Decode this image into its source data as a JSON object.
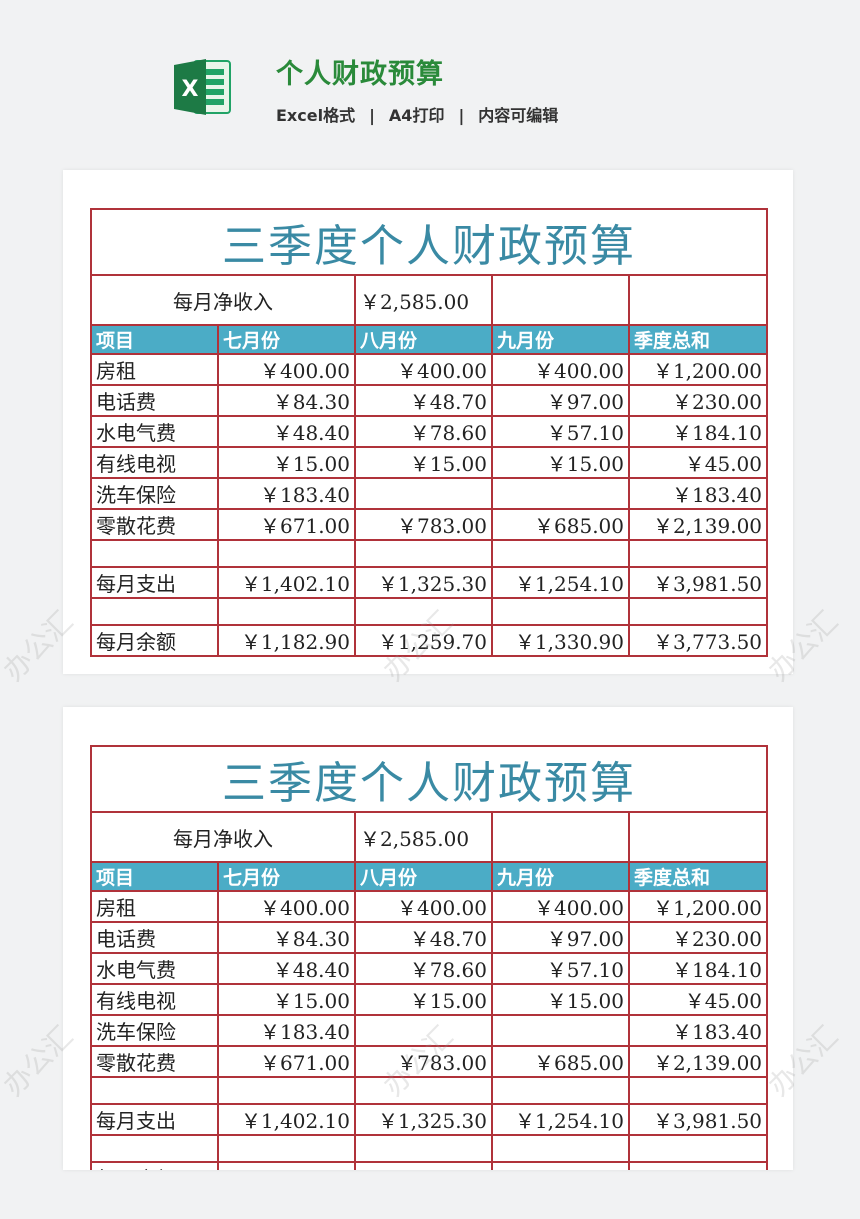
{
  "header": {
    "title": "个人财政预算",
    "format": "Excel格式",
    "print": "A4打印",
    "editable": "内容可编辑",
    "separator": "|"
  },
  "watermark": "办公汇",
  "sheet": {
    "title": "三季度个人财政预算",
    "income_label": "每月净收入",
    "income_value": "￥2,585.00",
    "columns": [
      "项目",
      "七月份",
      "八月份",
      "九月份",
      "季度总和"
    ],
    "rows": [
      [
        "房租",
        "￥400.00",
        "￥400.00",
        "￥400.00",
        "￥1,200.00"
      ],
      [
        "电话费",
        "￥84.30",
        "￥48.70",
        "￥97.00",
        "￥230.00"
      ],
      [
        "水电气费",
        "￥48.40",
        "￥78.60",
        "￥57.10",
        "￥184.10"
      ],
      [
        "有线电视",
        "￥15.00",
        "￥15.00",
        "￥15.00",
        "￥45.00"
      ],
      [
        "洗车保险",
        "￥183.40",
        "",
        "",
        "￥183.40"
      ],
      [
        "零散花费",
        "￥671.00",
        "￥783.00",
        "￥685.00",
        "￥2,139.00"
      ],
      [
        "",
        "",
        "",
        "",
        ""
      ],
      [
        "每月支出",
        "￥1,402.10",
        "￥1,325.30",
        "￥1,254.10",
        "￥3,981.50"
      ],
      [
        "",
        "",
        "",
        "",
        ""
      ],
      [
        "每月余额",
        "￥1,182.90",
        "￥1,259.70",
        "￥1,330.90",
        "￥3,773.50"
      ]
    ]
  }
}
